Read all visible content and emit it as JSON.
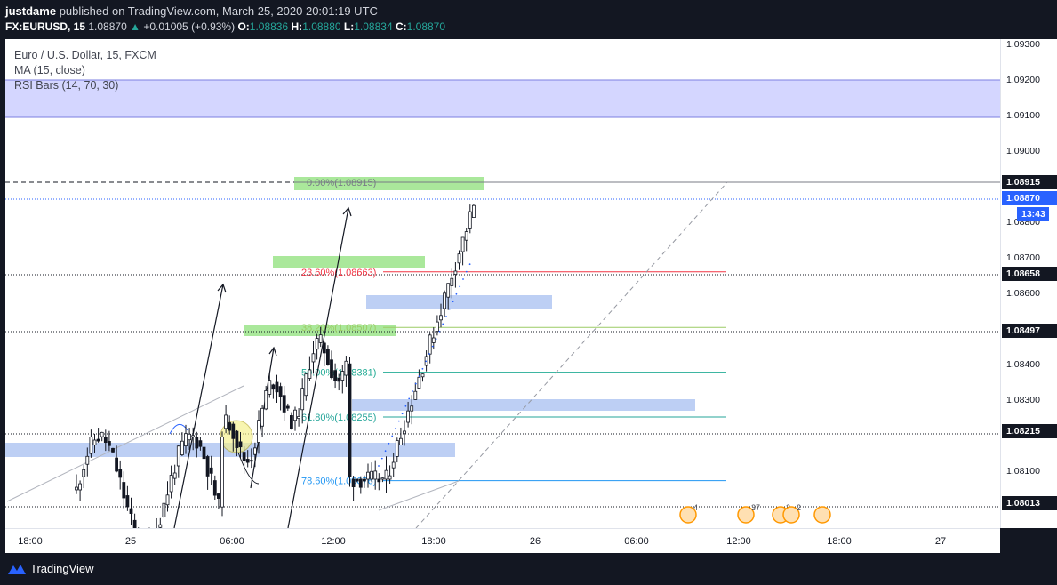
{
  "header": {
    "author": "justdame",
    "published_text": "published on TradingView.com, March 25, 2020 20:01:19 UTC",
    "symbol": "FX:EURUSD, 15",
    "last_price": "1.08870",
    "change": "+0.01005 (+0.93%)",
    "o_label": "O:",
    "o_value": "1.08836",
    "h_label": "H:",
    "h_value": "1.08880",
    "l_label": "L:",
    "l_value": "1.08834",
    "c_label": "C:",
    "c_value": "1.08870"
  },
  "legend": {
    "title": "Euro / U.S. Dollar, 15, FXCM",
    "ma": "MA (15, close)",
    "rsi": "RSI Bars (14, 70, 30)"
  },
  "price_axis": {
    "ticks": [
      "1.09300",
      "1.09200",
      "1.09100",
      "1.09000",
      "1.08800",
      "1.08700",
      "1.08600",
      "1.08400",
      "1.08300",
      "1.08100"
    ],
    "tick_values": [
      1.093,
      1.092,
      1.091,
      1.09,
      1.088,
      1.087,
      1.086,
      1.084,
      1.083,
      1.081
    ],
    "tags": [
      {
        "label": "1.08915",
        "value": 1.08915,
        "style": "dark"
      },
      {
        "label": "1.08870",
        "value": 1.0887,
        "style": "blue"
      },
      {
        "label": "13:43",
        "value": 1.08825,
        "style": "blue"
      },
      {
        "label": "1.08658",
        "value": 1.08658,
        "style": "dark"
      },
      {
        "label": "1.08497",
        "value": 1.08497,
        "style": "dark"
      },
      {
        "label": "1.08215",
        "value": 1.08215,
        "style": "dark"
      },
      {
        "label": "1.08013",
        "value": 1.08013,
        "style": "dark"
      }
    ]
  },
  "time_axis": {
    "labels": [
      "18:00",
      "25",
      "06:00",
      "12:00",
      "18:00",
      "26",
      "06:00",
      "12:00",
      "18:00",
      "27"
    ]
  },
  "fib_levels": [
    {
      "label": "0.00%(1.08915)",
      "value": 1.08915,
      "color": "#787b86"
    },
    {
      "label": "23.60%(1.08663)",
      "value": 1.08663,
      "color": "#f23645"
    },
    {
      "label": "38.20%(1.08507)",
      "value": 1.08507,
      "color": "#9ccc65"
    },
    {
      "label": "50.00%(1.08381)",
      "value": 1.08381,
      "color": "#22ab94"
    },
    {
      "label": "61.80%(1.08255)",
      "value": 1.08255,
      "color": "#26a69a"
    },
    {
      "label": "78.60%(1.08076)",
      "value": 1.08076,
      "color": "#2196f3"
    }
  ],
  "events": [
    "4",
    "37",
    "2",
    "2"
  ],
  "colors": {
    "background": "#131722",
    "chart_bg": "#ffffff",
    "candle": "#131722",
    "zone_blue": "#b2c7f2",
    "zone_green": "#8ee07a",
    "rsi_band": "#c5c8ff",
    "accent": "#2962ff"
  },
  "footer": {
    "brand": "TradingView"
  }
}
